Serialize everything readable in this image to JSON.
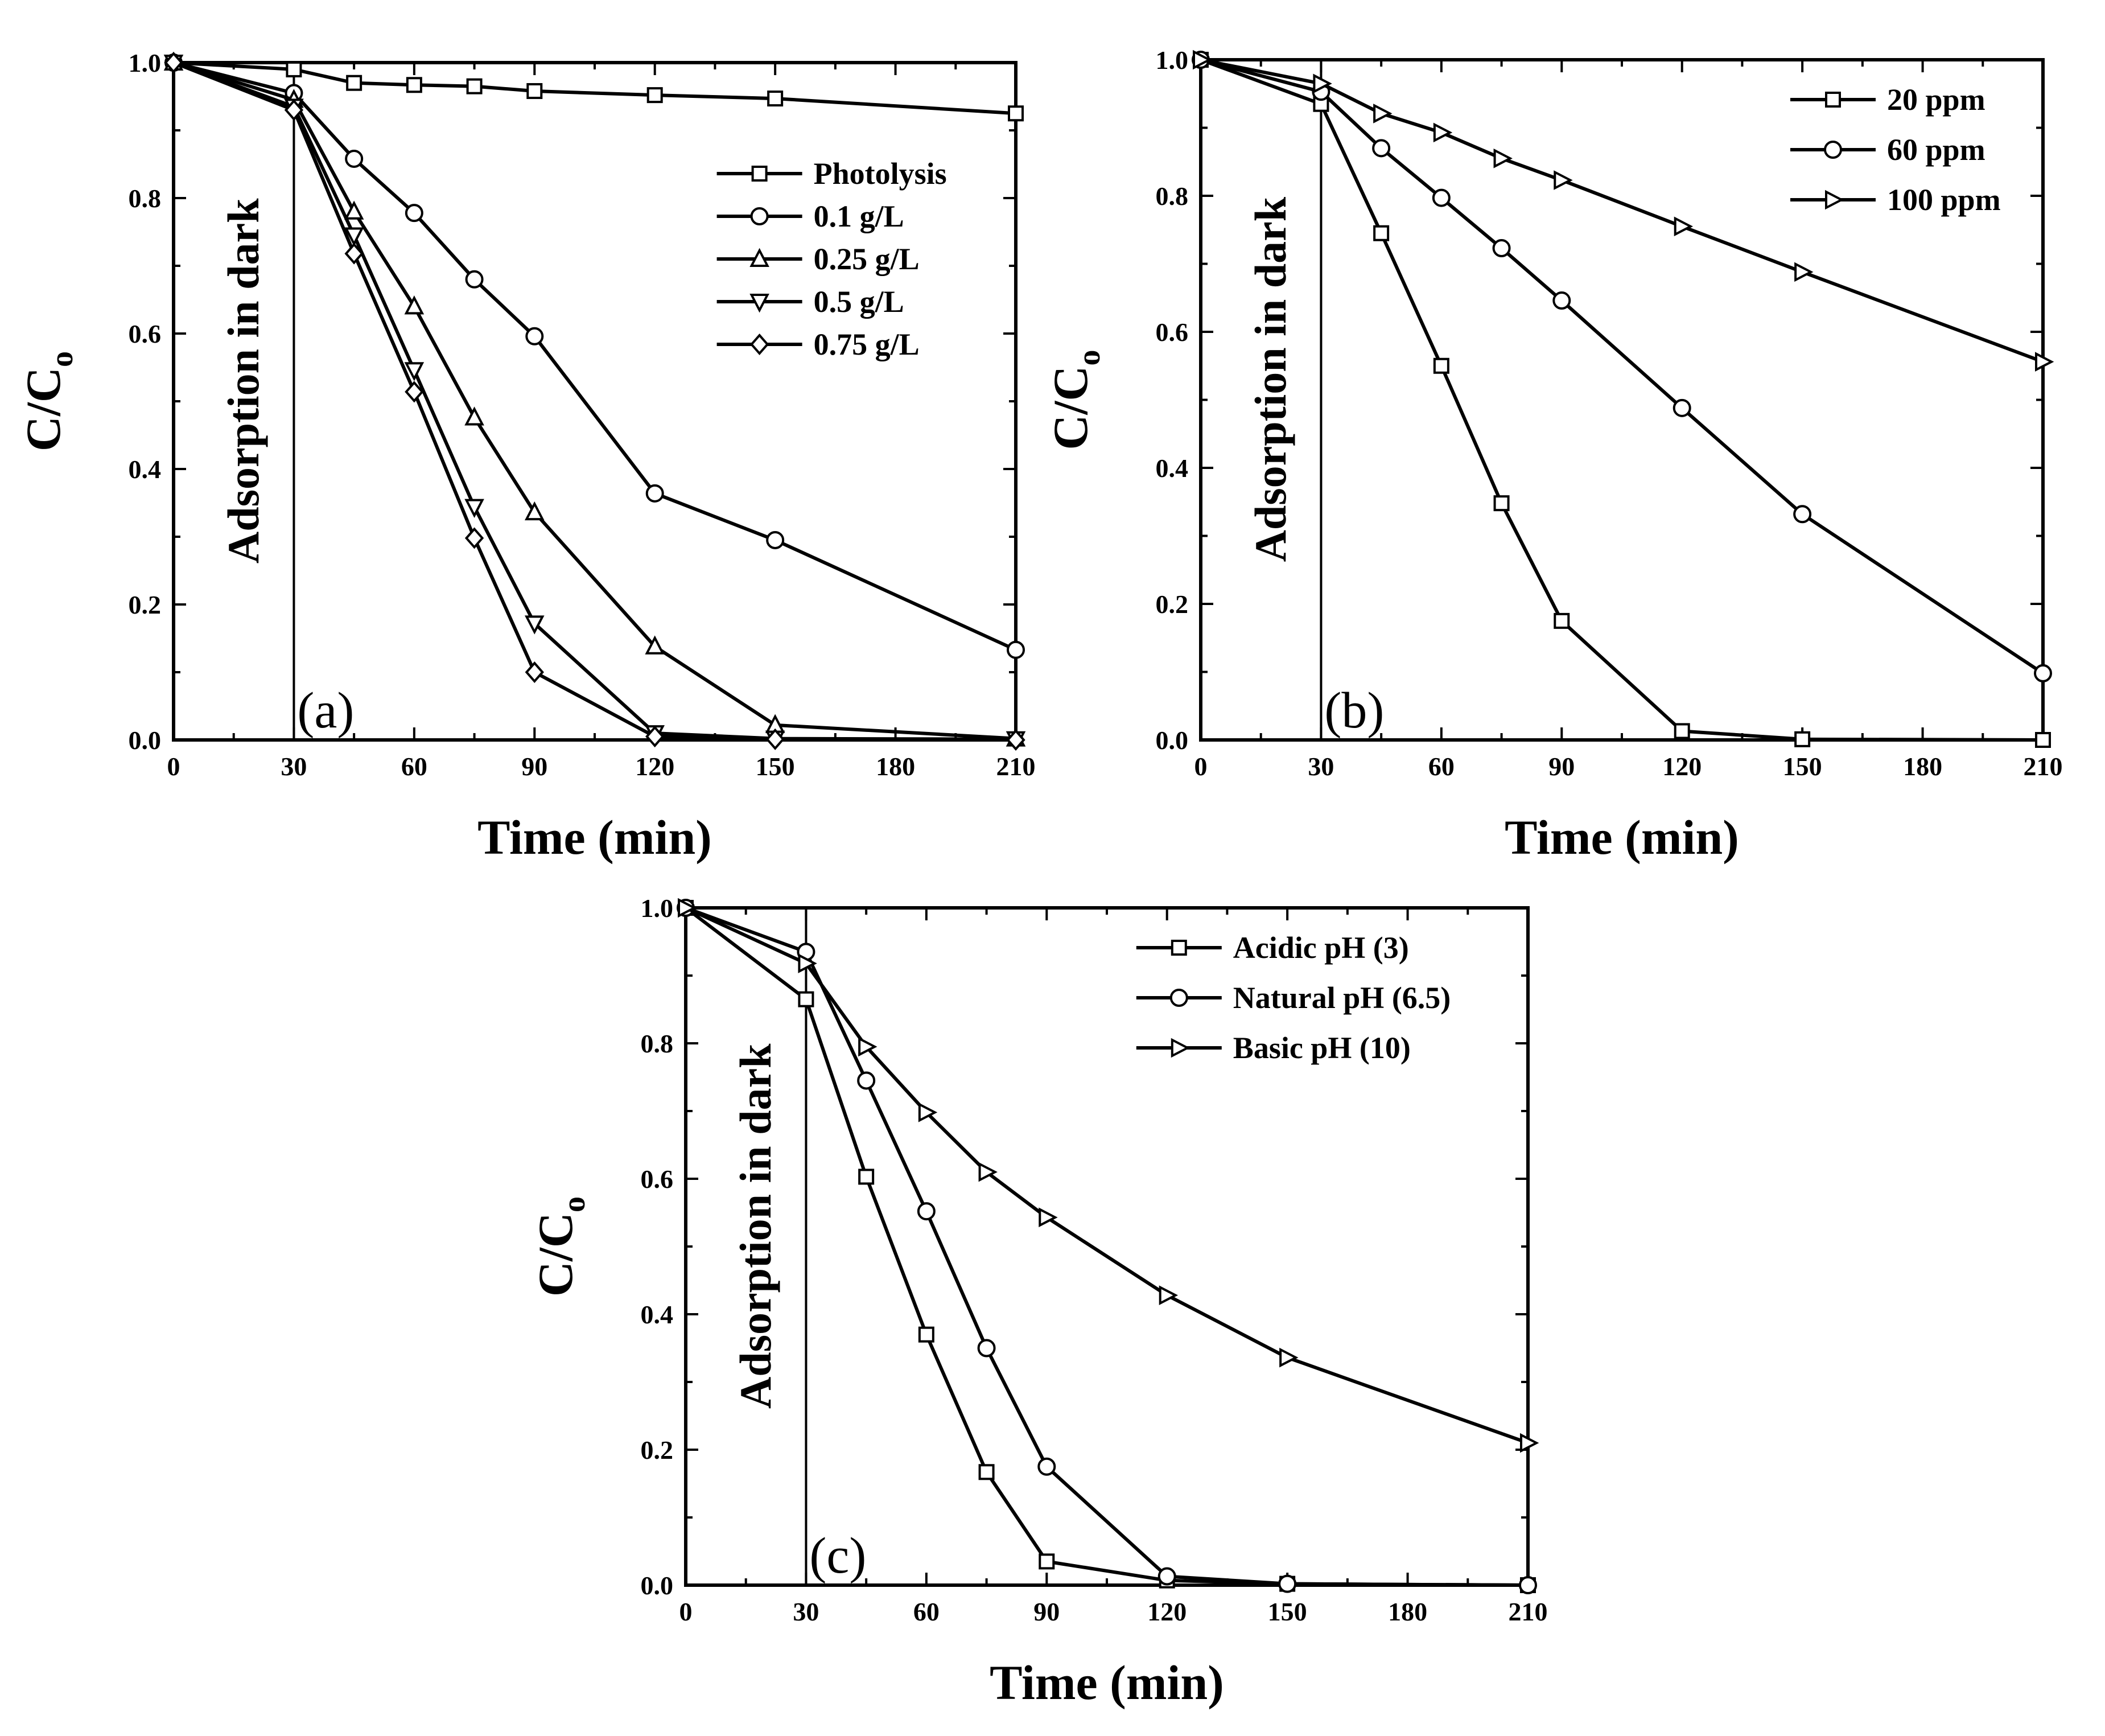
{
  "chart_data": [
    {
      "panel": "a",
      "type": "line",
      "panel_label": "(a)",
      "xlabel": "Time (min)",
      "ylabel_main": "C/C",
      "ylabel_sub": "o",
      "annotation": "Adsorption in dark",
      "annotation_x": 30,
      "xlim": [
        0,
        210
      ],
      "ylim": [
        0.0,
        1.0
      ],
      "xticks": [
        0,
        30,
        60,
        90,
        120,
        150,
        180,
        210
      ],
      "yticks": [
        "0.0",
        "0.2",
        "0.4",
        "0.6",
        "0.8",
        "1.0"
      ],
      "legend_position": "top-right",
      "series": [
        {
          "name": "Photolysis",
          "marker": "square",
          "x": [
            0,
            30,
            45,
            60,
            75,
            90,
            120,
            150,
            210
          ],
          "y": [
            1.0,
            0.99,
            0.97,
            0.967,
            0.965,
            0.958,
            0.952,
            0.947,
            0.925
          ]
        },
        {
          "name": "0.1 g/L",
          "marker": "circle",
          "x": [
            0,
            30,
            45,
            60,
            75,
            90,
            120,
            150,
            210
          ],
          "y": [
            1.0,
            0.955,
            0.858,
            0.778,
            0.68,
            0.596,
            0.364,
            0.295,
            0.133
          ]
        },
        {
          "name": "0.25 g/L",
          "marker": "triangle-up",
          "x": [
            0,
            30,
            45,
            60,
            75,
            90,
            120,
            150,
            210
          ],
          "y": [
            1.0,
            0.945,
            0.78,
            0.64,
            0.476,
            0.336,
            0.138,
            0.022,
            0.002
          ]
        },
        {
          "name": "0.5 g/L",
          "marker": "triangle-down",
          "x": [
            0,
            30,
            45,
            60,
            75,
            90,
            120,
            150,
            210
          ],
          "y": [
            1.0,
            0.935,
            0.745,
            0.546,
            0.344,
            0.172,
            0.01,
            0.002,
            0.001
          ]
        },
        {
          "name": "0.75 g/L",
          "marker": "diamond",
          "x": [
            0,
            30,
            45,
            60,
            75,
            90,
            120,
            150,
            210
          ],
          "y": [
            1.0,
            0.93,
            0.718,
            0.514,
            0.298,
            0.1,
            0.005,
            0.001,
            0.0
          ]
        }
      ]
    },
    {
      "panel": "b",
      "type": "line",
      "panel_label": "(b)",
      "xlabel": "Time (min)",
      "ylabel_main": "C/C",
      "ylabel_sub": "o",
      "annotation": "Adsorption in dark",
      "annotation_x": 30,
      "xlim": [
        0,
        210
      ],
      "ylim": [
        0.0,
        1.0
      ],
      "xticks": [
        0,
        30,
        60,
        90,
        120,
        150,
        180,
        210
      ],
      "yticks": [
        "0.0",
        "0.2",
        "0.4",
        "0.6",
        "0.8",
        "1.0"
      ],
      "legend_position": "top-right",
      "series": [
        {
          "name": "20 ppm",
          "marker": "square",
          "x": [
            0,
            30,
            45,
            60,
            75,
            90,
            120,
            150,
            210
          ],
          "y": [
            1.0,
            0.935,
            0.745,
            0.55,
            0.348,
            0.175,
            0.013,
            0.001,
            0.0
          ]
        },
        {
          "name": "60 ppm",
          "marker": "circle",
          "x": [
            0,
            30,
            45,
            60,
            75,
            90,
            120,
            150,
            210
          ],
          "y": [
            1.0,
            0.953,
            0.87,
            0.797,
            0.723,
            0.646,
            0.488,
            0.332,
            0.098
          ]
        },
        {
          "name": "100 ppm",
          "marker": "triangle-right",
          "x": [
            0,
            30,
            45,
            60,
            75,
            90,
            120,
            150,
            210
          ],
          "y": [
            1.0,
            0.965,
            0.921,
            0.893,
            0.855,
            0.823,
            0.755,
            0.688,
            0.556
          ]
        }
      ]
    },
    {
      "panel": "c",
      "type": "line",
      "panel_label": "(c)",
      "xlabel": "Time (min)",
      "ylabel_main": "C/C",
      "ylabel_sub": "o",
      "annotation": "Adsorption in dark",
      "annotation_x": 30,
      "xlim": [
        0,
        210
      ],
      "ylim": [
        0.0,
        1.0
      ],
      "xticks": [
        0,
        30,
        60,
        90,
        120,
        150,
        180,
        210
      ],
      "yticks": [
        "0.0",
        "0.2",
        "0.4",
        "0.6",
        "0.8",
        "1.0"
      ],
      "legend_position": "top-right",
      "series": [
        {
          "name": "Acidic pH (3)",
          "marker": "square",
          "x": [
            0,
            30,
            45,
            60,
            75,
            90,
            120,
            150,
            210
          ],
          "y": [
            1.0,
            0.865,
            0.603,
            0.37,
            0.167,
            0.035,
            0.007,
            0.002,
            0.0
          ]
        },
        {
          "name": "Natural pH (6.5)",
          "marker": "circle",
          "x": [
            0,
            30,
            45,
            60,
            75,
            90,
            120,
            150,
            210
          ],
          "y": [
            1.0,
            0.935,
            0.745,
            0.552,
            0.35,
            0.175,
            0.013,
            0.002,
            0.0
          ]
        },
        {
          "name": "Basic pH (10)",
          "marker": "triangle-right",
          "x": [
            0,
            30,
            45,
            60,
            75,
            90,
            120,
            150,
            210
          ],
          "y": [
            1.0,
            0.918,
            0.795,
            0.698,
            0.61,
            0.543,
            0.428,
            0.336,
            0.21
          ]
        }
      ]
    }
  ]
}
